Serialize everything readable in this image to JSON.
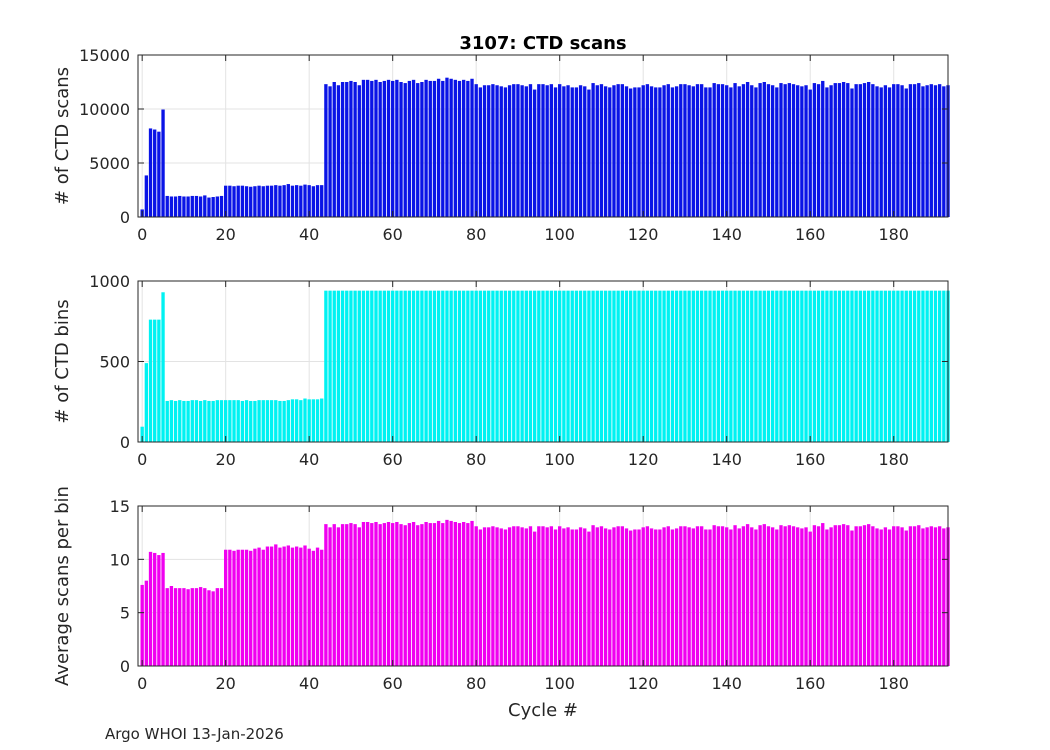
{
  "footer": "Argo WHOI 13-Jan-2026",
  "chart_data": [
    {
      "type": "bar",
      "title": "3107: CTD scans",
      "xlabel": "",
      "ylabel": "# of CTD scans",
      "color": "#0a14e6",
      "xlim": [
        -1,
        193
      ],
      "ylim": [
        0,
        15000
      ],
      "xticks": [
        0,
        20,
        40,
        60,
        80,
        100,
        120,
        140,
        160,
        180
      ],
      "yticks": [
        0,
        5000,
        10000,
        15000
      ],
      "grid": true,
      "x_start": 0,
      "values": [
        700,
        3850,
        8200,
        8100,
        7900,
        9950,
        1950,
        1900,
        1900,
        1950,
        1900,
        1900,
        1950,
        1950,
        1900,
        2000,
        1800,
        1850,
        1900,
        1950,
        2900,
        2900,
        2850,
        2900,
        2900,
        2850,
        2800,
        2850,
        2900,
        2850,
        2900,
        2900,
        2950,
        2900,
        2950,
        3050,
        2900,
        2950,
        2900,
        3000,
        2950,
        2850,
        2950,
        2950,
        12300,
        12100,
        12500,
        12200,
        12500,
        12500,
        12600,
        12500,
        12200,
        12700,
        12700,
        12600,
        12700,
        12500,
        12600,
        12700,
        12600,
        12700,
        12500,
        12400,
        12600,
        12700,
        12400,
        12500,
        12700,
        12600,
        12600,
        12800,
        12600,
        12900,
        12800,
        12700,
        12600,
        12700,
        12600,
        12800,
        12300,
        12000,
        12200,
        12200,
        12300,
        12200,
        12100,
        12000,
        12200,
        12300,
        12300,
        12200,
        12100,
        12300,
        11800,
        12300,
        12300,
        12200,
        12300,
        12000,
        12300,
        12100,
        12200,
        12000,
        12000,
        12200,
        12100,
        11800,
        12400,
        12200,
        12300,
        12100,
        12000,
        12200,
        12300,
        12300,
        12100,
        11900,
        12000,
        12000,
        12200,
        12300,
        12100,
        12000,
        12000,
        12200,
        12300,
        12000,
        12100,
        12300,
        12300,
        12200,
        12100,
        12300,
        12300,
        12000,
        12000,
        12400,
        12300,
        12300,
        12200,
        12000,
        12400,
        12100,
        12300,
        12500,
        12200,
        12000,
        12400,
        12500,
        12300,
        12200,
        12000,
        12400,
        12300,
        12400,
        12300,
        12200,
        12100,
        12200,
        11800,
        12400,
        12300,
        12600,
        12000,
        12200,
        12400,
        12400,
        12500,
        12400,
        11900,
        12300,
        12300,
        12400,
        12500,
        12300,
        12100,
        12000,
        12200,
        12000,
        12300,
        12300,
        12200,
        11900,
        12300,
        12300,
        12400,
        12100,
        12200,
        12300,
        12200,
        12300,
        12100,
        12200
      ]
    },
    {
      "type": "bar",
      "title": "",
      "xlabel": "",
      "ylabel": "# of CTD bins",
      "color": "#00f2f2",
      "xlim": [
        -1,
        193
      ],
      "ylim": [
        0,
        1000
      ],
      "xticks": [
        0,
        20,
        40,
        60,
        80,
        100,
        120,
        140,
        160,
        180
      ],
      "yticks": [
        0,
        500,
        1000
      ],
      "grid": true,
      "x_start": 0,
      "values": [
        95,
        490,
        760,
        760,
        760,
        930,
        255,
        260,
        255,
        260,
        255,
        255,
        260,
        260,
        255,
        260,
        255,
        255,
        260,
        260,
        260,
        260,
        260,
        260,
        255,
        260,
        255,
        255,
        260,
        260,
        260,
        260,
        260,
        255,
        255,
        260,
        265,
        265,
        260,
        270,
        265,
        265,
        265,
        270,
        940,
        940,
        940,
        940,
        940,
        940,
        940,
        940,
        940,
        940,
        940,
        940,
        940,
        940,
        940,
        940,
        940,
        940,
        940,
        940,
        940,
        940,
        940,
        940,
        940,
        940,
        940,
        940,
        940,
        940,
        940,
        940,
        940,
        940,
        940,
        940,
        940,
        940,
        940,
        940,
        940,
        940,
        940,
        940,
        940,
        940,
        940,
        940,
        940,
        940,
        940,
        940,
        940,
        940,
        940,
        940,
        940,
        940,
        940,
        940,
        940,
        940,
        940,
        940,
        940,
        940,
        940,
        940,
        940,
        940,
        940,
        940,
        940,
        940,
        940,
        940,
        940,
        940,
        940,
        940,
        940,
        940,
        940,
        940,
        940,
        940,
        940,
        940,
        940,
        940,
        940,
        940,
        940,
        940,
        940,
        940,
        940,
        940,
        940,
        940,
        940,
        940,
        940,
        940,
        940,
        940,
        940,
        940,
        940,
        940,
        940,
        940,
        940,
        940,
        940,
        940,
        940,
        940,
        940,
        940,
        940,
        940,
        940,
        940,
        940,
        940,
        940,
        940,
        940,
        940,
        940,
        940,
        940,
        940,
        940,
        940,
        940,
        940,
        940,
        940,
        940,
        940,
        940,
        940,
        940,
        940,
        940,
        940,
        940,
        940
      ]
    },
    {
      "type": "bar",
      "title": "",
      "xlabel": "Cycle #",
      "ylabel": "Average scans per bin",
      "color": "#f000f0",
      "xlim": [
        -1,
        193
      ],
      "ylim": [
        0,
        15
      ],
      "xticks": [
        0,
        20,
        40,
        60,
        80,
        100,
        120,
        140,
        160,
        180
      ],
      "yticks": [
        0,
        5,
        10,
        15
      ],
      "grid": true,
      "x_start": 0,
      "values": [
        7.6,
        8.0,
        10.7,
        10.6,
        10.4,
        10.6,
        7.3,
        7.5,
        7.3,
        7.3,
        7.3,
        7.2,
        7.3,
        7.3,
        7.4,
        7.3,
        7.1,
        7.0,
        7.3,
        7.3,
        10.9,
        10.9,
        10.8,
        10.9,
        10.9,
        10.9,
        10.8,
        11.0,
        11.1,
        10.9,
        11.2,
        11.2,
        11.4,
        11.1,
        11.2,
        11.3,
        11.1,
        11.2,
        11.1,
        11.3,
        11.0,
        10.8,
        11.1,
        10.9,
        13.3,
        13.0,
        13.3,
        13.0,
        13.3,
        13.3,
        13.4,
        13.3,
        13.0,
        13.5,
        13.5,
        13.4,
        13.5,
        13.3,
        13.4,
        13.5,
        13.4,
        13.5,
        13.3,
        13.2,
        13.4,
        13.5,
        13.2,
        13.3,
        13.5,
        13.4,
        13.4,
        13.6,
        13.4,
        13.7,
        13.6,
        13.5,
        13.4,
        13.5,
        13.4,
        13.6,
        13.1,
        12.8,
        13.0,
        13.0,
        13.1,
        13.0,
        12.9,
        12.8,
        13.0,
        13.1,
        13.1,
        13.0,
        12.9,
        13.1,
        12.6,
        13.1,
        13.1,
        13.0,
        13.1,
        12.8,
        13.1,
        12.9,
        13.0,
        12.8,
        12.8,
        13.0,
        12.9,
        12.6,
        13.2,
        13.0,
        13.1,
        12.9,
        12.8,
        13.0,
        13.1,
        13.1,
        12.9,
        12.7,
        12.8,
        12.8,
        13.0,
        13.1,
        12.9,
        12.8,
        12.8,
        13.0,
        13.1,
        12.8,
        12.9,
        13.1,
        13.1,
        13.0,
        12.9,
        13.1,
        13.1,
        12.8,
        12.8,
        13.2,
        13.1,
        13.1,
        13.0,
        12.8,
        13.2,
        12.9,
        13.1,
        13.3,
        13.0,
        12.8,
        13.2,
        13.3,
        13.1,
        13.0,
        12.8,
        13.2,
        13.1,
        13.2,
        13.1,
        13.0,
        12.9,
        13.0,
        12.6,
        13.2,
        13.1,
        13.4,
        12.8,
        13.0,
        13.2,
        13.2,
        13.3,
        13.2,
        12.7,
        13.1,
        13.1,
        13.2,
        13.3,
        13.1,
        12.9,
        12.8,
        13.0,
        12.8,
        13.1,
        13.1,
        13.0,
        12.7,
        13.1,
        13.1,
        13.2,
        12.9,
        13.0,
        13.1,
        13.0,
        13.1,
        12.9,
        13.0
      ]
    }
  ]
}
